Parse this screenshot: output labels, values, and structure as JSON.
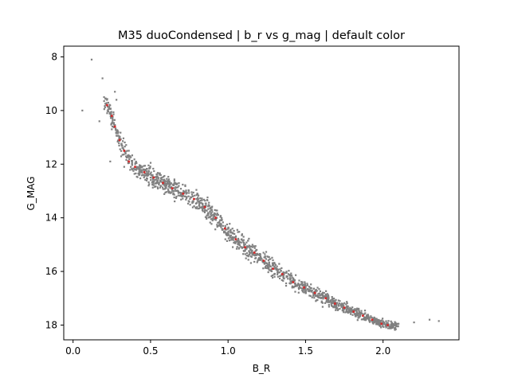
{
  "chart_data": {
    "type": "scatter",
    "title": "M35 duoCondensed | b_r vs g_mag | default color",
    "xlabel": "B_R",
    "ylabel": "G_MAG",
    "xlim": [
      -0.06,
      2.49
    ],
    "ylim": [
      18.55,
      7.6
    ],
    "y_inverted": true,
    "grid": false,
    "x_ticks": [
      "0.0",
      "0.5",
      "1.0",
      "1.5",
      "2.0"
    ],
    "y_ticks": [
      "8",
      "10",
      "12",
      "14",
      "16",
      "18"
    ],
    "colors": {
      "stars": "#808080",
      "highlight": "#d62728"
    },
    "series": [
      {
        "kind": "stars",
        "color": "#808080",
        "x": [
          0.12,
          0.06,
          0.19,
          0.2,
          0.17,
          0.22,
          0.25,
          0.27,
          0.28,
          0.3,
          0.24,
          0.33,
          0.36,
          0.4,
          0.45,
          0.5,
          0.55,
          0.6,
          0.65,
          0.7,
          0.75,
          0.8,
          0.85,
          0.9,
          0.95,
          1.0,
          1.05,
          1.1,
          1.15,
          1.2,
          1.25,
          1.3,
          1.35,
          1.4,
          1.45,
          1.5,
          1.55,
          1.6,
          1.65,
          1.7,
          1.75,
          1.8,
          1.85,
          1.9,
          1.95,
          2.0,
          2.05,
          2.1,
          2.2,
          2.3,
          2.36
        ],
        "y": [
          8.1,
          10.0,
          8.8,
          9.5,
          10.4,
          10.1,
          10.7,
          9.3,
          9.6,
          11.0,
          11.9,
          12.1,
          11.5,
          12.2,
          12.4,
          12.5,
          12.7,
          12.9,
          13.0,
          13.2,
          13.4,
          13.6,
          13.8,
          14.1,
          14.3,
          14.6,
          14.9,
          15.1,
          15.3,
          15.5,
          15.7,
          15.9,
          16.1,
          16.3,
          16.5,
          16.6,
          16.8,
          17.0,
          17.1,
          17.3,
          17.4,
          17.5,
          17.6,
          17.7,
          17.8,
          17.9,
          18.0,
          17.95,
          17.9,
          17.8,
          17.85
        ]
      },
      {
        "kind": "highlight",
        "color": "#d62728",
        "x": [
          0.22,
          0.25,
          0.27,
          0.3,
          0.33,
          0.36,
          0.4,
          0.46,
          0.52,
          0.58,
          0.64,
          0.71,
          0.78,
          0.85,
          0.92,
          0.98,
          1.05,
          1.11,
          1.17,
          1.23,
          1.29,
          1.35,
          1.42,
          1.49,
          1.56,
          1.63,
          1.69,
          1.75,
          1.81,
          1.87,
          1.93,
          1.99,
          2.03
        ],
        "y": [
          9.8,
          10.2,
          10.6,
          11.1,
          11.5,
          11.9,
          12.1,
          12.3,
          12.5,
          12.7,
          12.9,
          13.1,
          13.3,
          13.6,
          14.0,
          14.4,
          14.8,
          15.1,
          15.3,
          15.6,
          15.9,
          16.1,
          16.4,
          16.6,
          16.8,
          17.0,
          17.2,
          17.35,
          17.5,
          17.65,
          17.8,
          17.95,
          18.0
        ]
      }
    ]
  }
}
